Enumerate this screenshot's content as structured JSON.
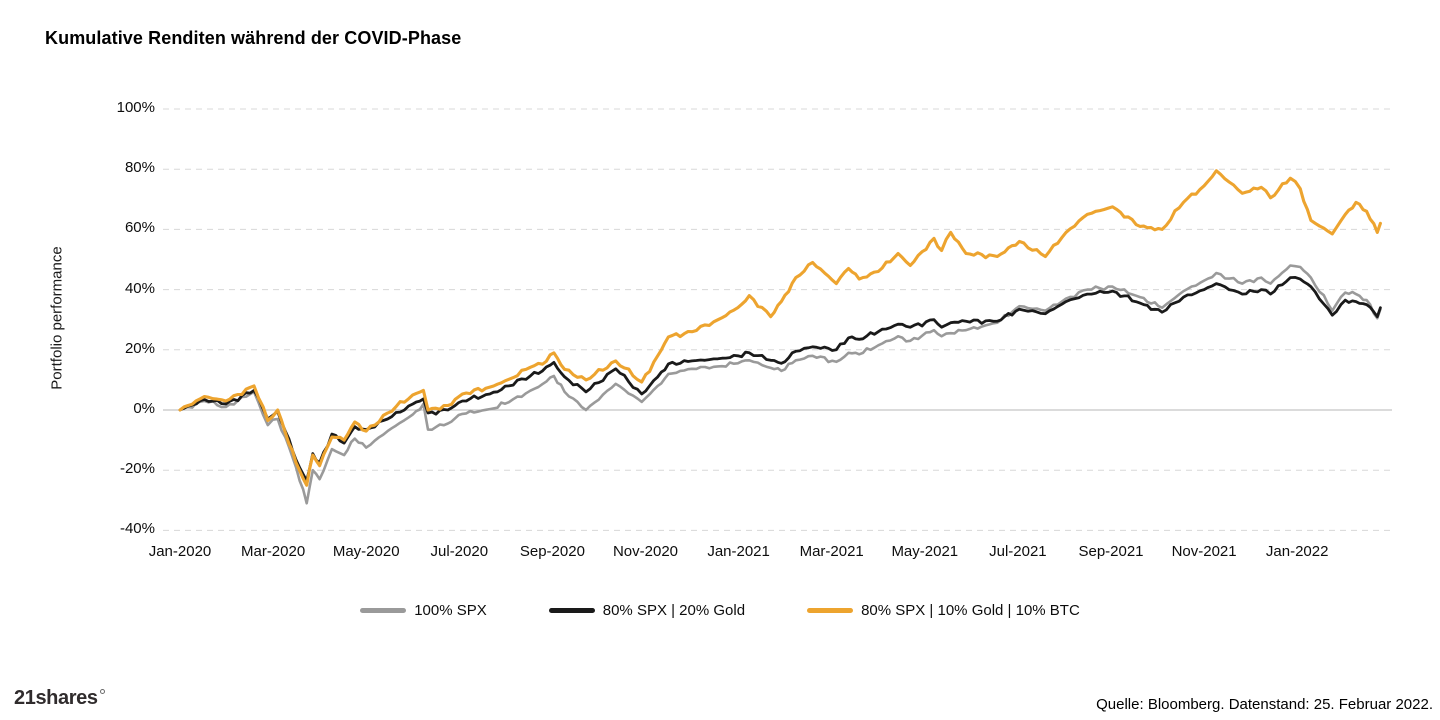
{
  "footer": {
    "logo_text": "21shares",
    "source": "Quelle: Bloomberg. Datenstand: 25. Februar 2022."
  },
  "chart_data": {
    "type": "line",
    "title": "Kumulative Renditen während der COVID-Phase",
    "xlabel": "",
    "ylabel": "Portfolio performance",
    "ylim": [
      -40,
      100
    ],
    "yticks": [
      100,
      80,
      60,
      40,
      20,
      0,
      -20,
      -40
    ],
    "ytick_suffix": "%",
    "xticks": [
      "Jan-2020",
      "Mar-2020",
      "May-2020",
      "Jul-2020",
      "Sep-2020",
      "Nov-2020",
      "Jan-2021",
      "Mar-2021",
      "May-2021",
      "Jul-2021",
      "Sep-2021",
      "Nov-2021",
      "Jan-2022"
    ],
    "grid": "horizontal dashed gridlines, solid light line at 0%",
    "grid_color": "#d8d8d8",
    "zero_line_color": "#b7b7b7",
    "legend_position": "bottom center",
    "x_dates": [
      "2020-01-01",
      "2020-01-17",
      "2020-01-31",
      "2020-02-19",
      "2020-02-28",
      "2020-03-04",
      "2020-03-09",
      "2020-03-16",
      "2020-03-23",
      "2020-03-27",
      "2020-04-01",
      "2020-04-09",
      "2020-04-17",
      "2020-04-24",
      "2020-05-01",
      "2020-05-15",
      "2020-06-01",
      "2020-06-08",
      "2020-06-11",
      "2020-06-24",
      "2020-07-03",
      "2020-07-21",
      "2020-08-03",
      "2020-08-17",
      "2020-08-25",
      "2020-09-02",
      "2020-09-09",
      "2020-09-23",
      "2020-10-12",
      "2020-10-29",
      "2020-11-09",
      "2020-11-16",
      "2020-12-01",
      "2020-12-18",
      "2020-12-31",
      "2021-01-08",
      "2021-01-22",
      "2021-01-29",
      "2021-02-08",
      "2021-02-19",
      "2021-03-04",
      "2021-03-12",
      "2021-03-19",
      "2021-04-01",
      "2021-04-14",
      "2021-04-22",
      "2021-05-07",
      "2021-05-12",
      "2021-05-18",
      "2021-05-28",
      "2021-06-18",
      "2021-07-02",
      "2021-07-19",
      "2021-08-02",
      "2021-08-16",
      "2021-09-02",
      "2021-09-20",
      "2021-10-04",
      "2021-10-18",
      "2021-11-01",
      "2021-11-09",
      "2021-11-26",
      "2021-12-08",
      "2021-12-14",
      "2021-12-27",
      "2022-01-03",
      "2022-01-10",
      "2022-01-24",
      "2022-02-02",
      "2022-02-09",
      "2022-02-16",
      "2022-02-23",
      "2022-02-25"
    ],
    "series": [
      {
        "name": "100% SPX",
        "color": "#9a9a9a",
        "values": [
          0,
          3,
          1,
          6,
          -5,
          -3,
          -9,
          -19,
          -31,
          -20,
          -23,
          -13,
          -15,
          -9.5,
          -12.5,
          -7,
          -1.5,
          2,
          -6.5,
          -4.5,
          -1.3,
          0.3,
          2.6,
          6.4,
          8.6,
          11.3,
          6,
          0,
          8.7,
          2.7,
          8,
          12,
          13.7,
          14.5,
          15.5,
          16.5,
          14,
          13,
          16.5,
          18,
          16,
          19,
          18.5,
          21.5,
          24.5,
          23,
          26.5,
          24.5,
          25.5,
          26.5,
          29,
          34.5,
          33,
          37,
          40,
          41,
          37.5,
          34,
          39.5,
          43,
          45.5,
          42,
          44,
          42,
          48,
          47.5,
          44,
          33,
          39,
          38.5,
          36.5,
          30.5,
          33.5
        ]
      },
      {
        "name": "80% SPX | 20% Gold",
        "color": "#1a1a1a",
        "values": [
          0,
          3.5,
          2,
          6.5,
          -3,
          -0.5,
          -7,
          -16.5,
          -23.5,
          -14.5,
          -17.5,
          -8,
          -11,
          -5.5,
          -6.5,
          -3,
          2,
          3.7,
          -1,
          0,
          3,
          5.3,
          8,
          11.3,
          13,
          15.8,
          11,
          6,
          13.7,
          5.3,
          11,
          15.3,
          16.3,
          17,
          18,
          19,
          16.5,
          15.5,
          19.5,
          21,
          20,
          24,
          23.5,
          26,
          28.5,
          27.5,
          30,
          27.5,
          29,
          29.5,
          29.5,
          33.5,
          32,
          36,
          38.5,
          39.5,
          35.5,
          32.5,
          37.5,
          40,
          42,
          38.5,
          40,
          38.5,
          44,
          43.5,
          41,
          31.5,
          36.5,
          36,
          35,
          31,
          34
        ]
      },
      {
        "name": "80% SPX | 10% Gold | 10% BTC",
        "color": "#eda42f",
        "values": [
          0,
          4.5,
          3,
          8,
          -3.5,
          0,
          -7.5,
          -17.5,
          -25,
          -15,
          -18.5,
          -9,
          -10,
          -4,
          -7,
          -1,
          5,
          6.5,
          0,
          1.5,
          5.3,
          7.6,
          10.2,
          14.2,
          15.2,
          19,
          13.5,
          10,
          16.3,
          9.3,
          18,
          24.3,
          26,
          30,
          34,
          38,
          31,
          36,
          44,
          49,
          42,
          47,
          43.5,
          46,
          52,
          48,
          57,
          53,
          59,
          52,
          51,
          56,
          51,
          59,
          65,
          67.5,
          61,
          60,
          69,
          74.5,
          79.5,
          72,
          74,
          70.5,
          77,
          73.5,
          63,
          58.5,
          65,
          69,
          66,
          59,
          62
        ]
      }
    ]
  }
}
